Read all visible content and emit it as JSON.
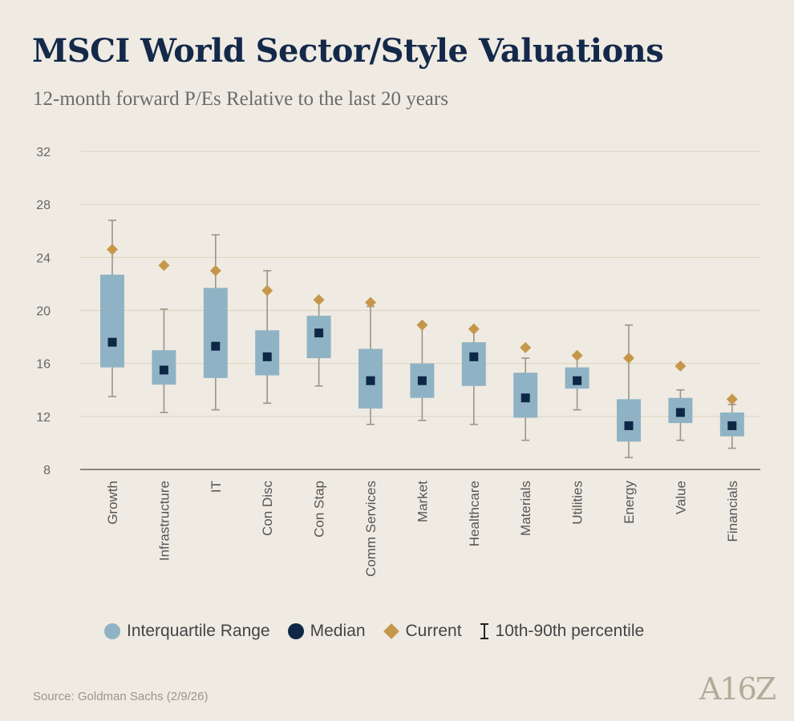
{
  "header": {
    "title": "MSCI World Sector/Style Valuations",
    "subtitle": "12-month forward P/Es Relative to the last 20 years"
  },
  "colors": {
    "iqr": "#8fb3c4",
    "median": "#0f2746",
    "current": "#c6974b",
    "whisker": "#9c9585",
    "grid": "#dcd6c1",
    "axis": "#8c8577"
  },
  "legend": {
    "iqr": "Interquartile Range",
    "median": "Median",
    "current": "Current",
    "percentile": "10th-90th percentile"
  },
  "footer": {
    "source": "Source: Goldman Sachs (2/9/26)",
    "logo": "A16Z"
  },
  "chart_data": {
    "type": "box",
    "title": "MSCI World Sector/Style Valuations",
    "subtitle": "12-month forward P/Es Relative to the last 20 years",
    "ylim": [
      8,
      32
    ],
    "yticks": [
      8,
      12,
      16,
      20,
      24,
      28,
      32
    ],
    "grid": true,
    "legend_position": "bottom",
    "categories": [
      "Growth",
      "Infrastructure",
      "IT",
      "Con Disc",
      "Con Stap",
      "Comm Services",
      "Market",
      "Healthcare",
      "Materials",
      "Utilities",
      "Energy",
      "Value",
      "Financials"
    ],
    "series": [
      {
        "name": "Interquartile Range (25th)",
        "values": [
          15.7,
          14.4,
          14.9,
          15.1,
          16.4,
          12.6,
          13.4,
          14.3,
          11.9,
          14.1,
          10.1,
          11.5,
          10.5
        ]
      },
      {
        "name": "Interquartile Range (75th)",
        "values": [
          22.7,
          17.0,
          21.7,
          18.5,
          19.6,
          17.1,
          16.0,
          17.6,
          15.3,
          15.7,
          13.3,
          13.4,
          12.3
        ]
      },
      {
        "name": "Median",
        "values": [
          17.6,
          15.5,
          17.3,
          16.5,
          18.3,
          14.7,
          14.7,
          16.5,
          13.4,
          14.7,
          11.3,
          12.3,
          11.3
        ]
      },
      {
        "name": "Current",
        "values": [
          24.6,
          23.4,
          23.0,
          21.5,
          20.8,
          20.6,
          18.9,
          18.6,
          17.2,
          16.6,
          16.4,
          15.8,
          13.3
        ]
      },
      {
        "name": "10th percentile",
        "values": [
          13.5,
          12.3,
          12.5,
          13.0,
          14.3,
          11.4,
          11.7,
          11.4,
          10.2,
          12.5,
          8.9,
          10.2,
          9.6
        ]
      },
      {
        "name": "90th percentile",
        "values": [
          26.8,
          20.1,
          25.7,
          23.0,
          20.9,
          20.3,
          18.9,
          18.6,
          16.4,
          16.7,
          18.9,
          14.0,
          12.9
        ]
      }
    ]
  }
}
